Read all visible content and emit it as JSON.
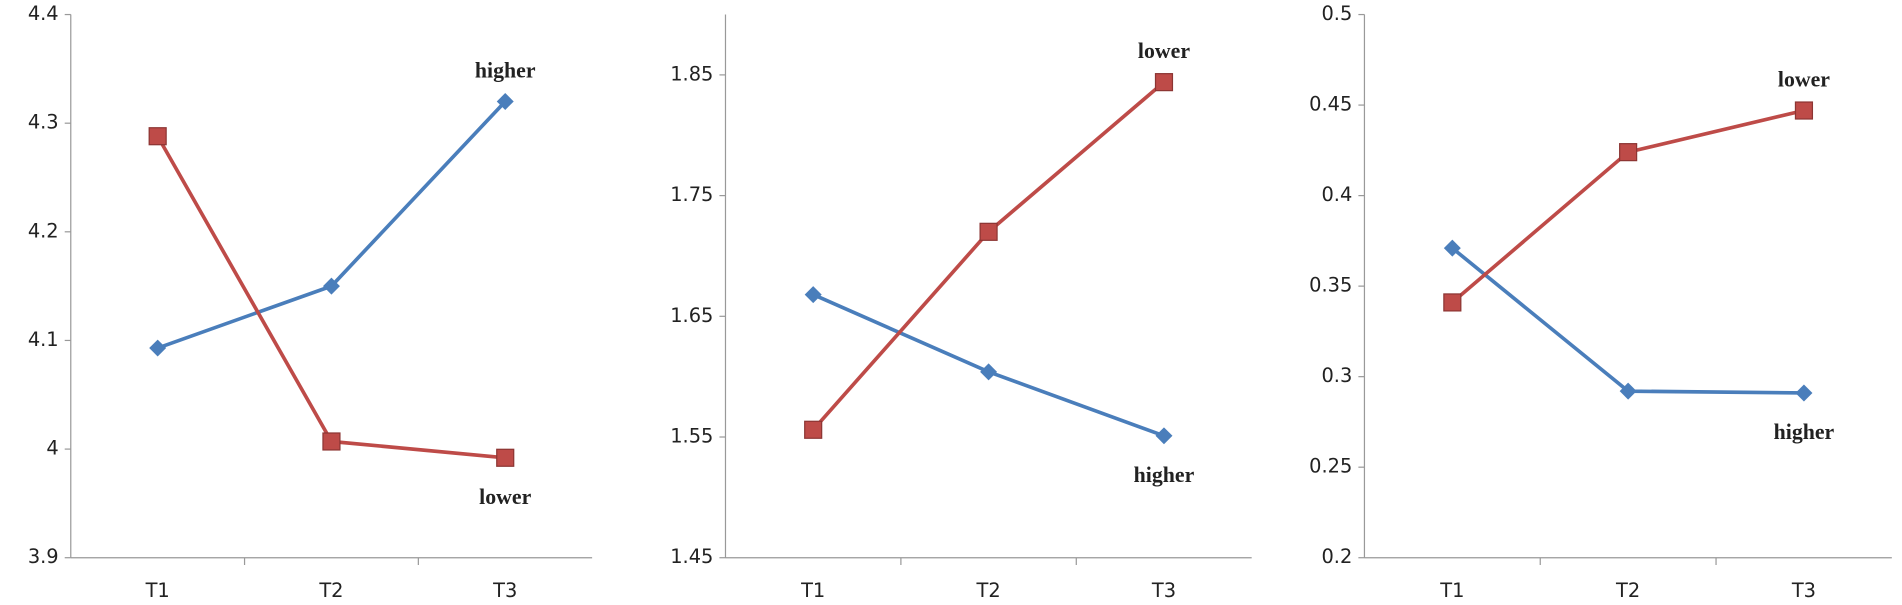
{
  "chart_data": [
    {
      "type": "line",
      "categories": [
        "T1",
        "T2",
        "T3"
      ],
      "ylim": [
        3.9,
        4.4
      ],
      "yticks": [
        3.9,
        4,
        4.1,
        4.2,
        4.3,
        4.4
      ],
      "series": [
        {
          "name": "higher",
          "color": "#4a7ebb",
          "marker": "diamond",
          "values": [
            4.093,
            4.15,
            4.32
          ]
        },
        {
          "name": "lower",
          "color": "#be4b48",
          "marker": "square",
          "values": [
            4.288,
            4.007,
            3.992
          ]
        }
      ]
    },
    {
      "type": "line",
      "categories": [
        "T1",
        "T2",
        "T3"
      ],
      "ylim": [
        1.45,
        1.9
      ],
      "yticks": [
        1.45,
        1.55,
        1.65,
        1.75,
        1.85
      ],
      "series": [
        {
          "name": "higher",
          "color": "#4a7ebb",
          "marker": "diamond",
          "values": [
            1.668,
            1.604,
            1.551
          ]
        },
        {
          "name": "lower",
          "color": "#be4b48",
          "marker": "square",
          "values": [
            1.556,
            1.72,
            1.844
          ]
        }
      ]
    },
    {
      "type": "line",
      "categories": [
        "T1",
        "T2",
        "T3"
      ],
      "ylim": [
        0.2,
        0.5
      ],
      "yticks": [
        0.2,
        0.25,
        0.3,
        0.35,
        0.4,
        0.45,
        0.5
      ],
      "series": [
        {
          "name": "higher",
          "color": "#4a7ebb",
          "marker": "diamond",
          "values": [
            0.371,
            0.292,
            0.291
          ]
        },
        {
          "name": "lower",
          "color": "#be4b48",
          "marker": "square",
          "values": [
            0.341,
            0.424,
            0.447
          ]
        }
      ]
    }
  ]
}
